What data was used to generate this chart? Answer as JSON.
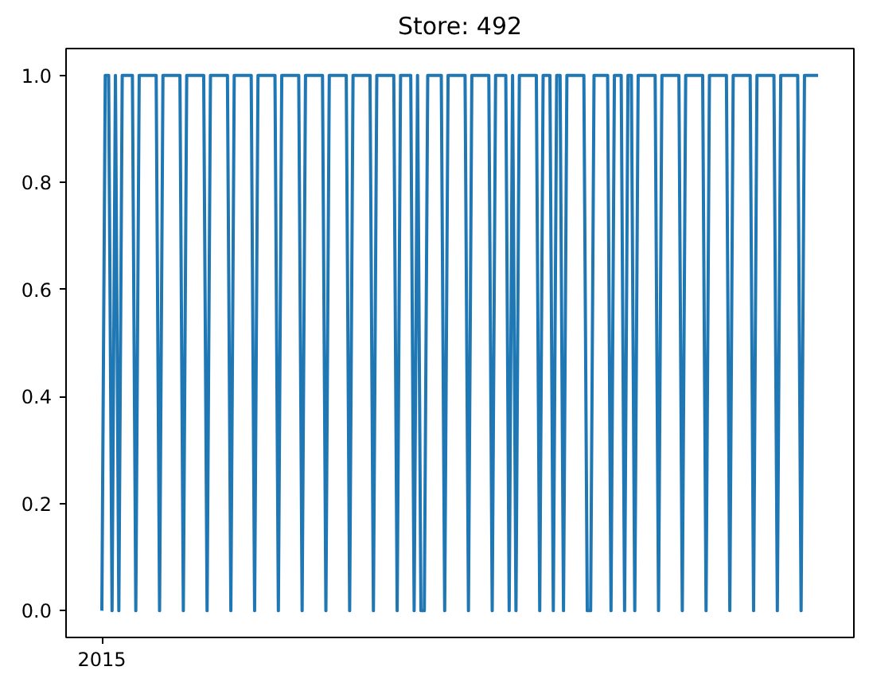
{
  "chart_data": {
    "type": "line",
    "title": "Store: 492",
    "color": "#1f77b4",
    "categories": [
      "2015",
      null,
      null,
      null,
      null,
      null,
      null,
      null,
      null,
      null,
      null,
      null,
      null,
      null,
      null,
      null,
      null,
      null,
      null,
      null,
      null,
      null,
      null,
      null,
      null,
      null,
      null,
      null,
      null,
      null,
      null,
      null,
      null,
      null,
      null,
      null,
      null,
      null,
      null,
      null,
      null,
      null,
      null,
      null,
      null,
      null,
      null,
      null,
      null,
      null,
      null,
      null,
      null,
      null,
      null,
      null,
      null,
      null,
      null,
      null,
      null,
      null,
      null,
      null,
      null,
      null,
      null,
      null,
      null,
      null,
      null,
      null,
      null,
      null,
      null,
      null,
      null,
      null,
      null,
      null,
      null,
      null,
      null,
      null,
      null,
      null,
      null,
      null,
      null,
      null,
      null,
      null,
      null,
      null,
      null,
      null,
      null,
      null,
      null,
      null,
      null,
      null,
      null,
      null,
      null,
      null,
      null,
      null,
      null,
      null,
      null,
      null,
      null,
      null,
      null,
      null,
      null,
      null,
      null,
      null,
      null,
      null,
      null,
      null,
      null,
      null,
      null,
      null,
      null,
      null,
      null,
      null,
      null,
      null,
      null,
      null,
      null,
      null,
      null,
      null,
      null,
      null,
      null,
      null,
      null,
      null,
      null,
      null,
      null,
      null,
      null,
      null,
      null,
      null,
      null,
      null,
      null,
      null,
      null,
      null,
      null,
      null,
      null,
      null,
      null,
      null,
      null,
      null,
      null,
      null,
      null,
      null,
      null,
      null,
      null,
      null,
      null,
      null,
      null,
      null,
      null,
      null,
      null,
      null,
      null,
      null,
      null,
      null,
      null,
      null,
      null,
      null,
      null,
      null,
      null,
      null,
      null,
      null,
      null,
      null,
      null,
      null,
      null,
      null,
      null,
      null,
      null,
      null,
      null,
      null,
      null,
      null
    ],
    "values": [
      0,
      1,
      1,
      0,
      1,
      0,
      1,
      1,
      1,
      1,
      0,
      1,
      1,
      1,
      1,
      1,
      1,
      0,
      1,
      1,
      1,
      1,
      1,
      1,
      0,
      1,
      1,
      1,
      1,
      1,
      1,
      0,
      1,
      1,
      1,
      1,
      1,
      1,
      0,
      1,
      1,
      1,
      1,
      1,
      1,
      0,
      1,
      1,
      1,
      1,
      1,
      1,
      0,
      1,
      1,
      1,
      1,
      1,
      1,
      0,
      1,
      1,
      1,
      1,
      1,
      1,
      0,
      1,
      1,
      1,
      1,
      1,
      1,
      0,
      1,
      1,
      1,
      1,
      1,
      1,
      0,
      1,
      1,
      1,
      1,
      1,
      1,
      0,
      1,
      1,
      1,
      1,
      0,
      1,
      0,
      0,
      1,
      1,
      1,
      1,
      1,
      0,
      1,
      1,
      1,
      1,
      1,
      1,
      0,
      1,
      1,
      1,
      1,
      1,
      1,
      0,
      1,
      1,
      1,
      1,
      0,
      1,
      0,
      1,
      1,
      1,
      1,
      1,
      1,
      0,
      1,
      1,
      1,
      0,
      1,
      1,
      0,
      1,
      1,
      1,
      1,
      1,
      1,
      0,
      0,
      1,
      1,
      1,
      1,
      1,
      0,
      1,
      1,
      1,
      0,
      1,
      1,
      0,
      1,
      1,
      1,
      1,
      1,
      1,
      0,
      1,
      1,
      1,
      1,
      1,
      1,
      0,
      1,
      1,
      1,
      1,
      1,
      1,
      0,
      1,
      1,
      1,
      1,
      1,
      1,
      0,
      1,
      1,
      1,
      1,
      1,
      1,
      0,
      1,
      1,
      1,
      1,
      1,
      1,
      0,
      1,
      1,
      1,
      1,
      1,
      1,
      0,
      1,
      1,
      1,
      1,
      1
    ],
    "ylim": [
      -0.05,
      1.05
    ],
    "yticks": [
      {
        "value": 0,
        "label": "0.0"
      },
      {
        "value": 0.2,
        "label": "0.2"
      },
      {
        "value": 0.4,
        "label": "0.4"
      },
      {
        "value": 0.6,
        "label": "0.6"
      },
      {
        "value": 0.8,
        "label": "0.8"
      },
      {
        "value": 1,
        "label": "1.0"
      }
    ]
  }
}
